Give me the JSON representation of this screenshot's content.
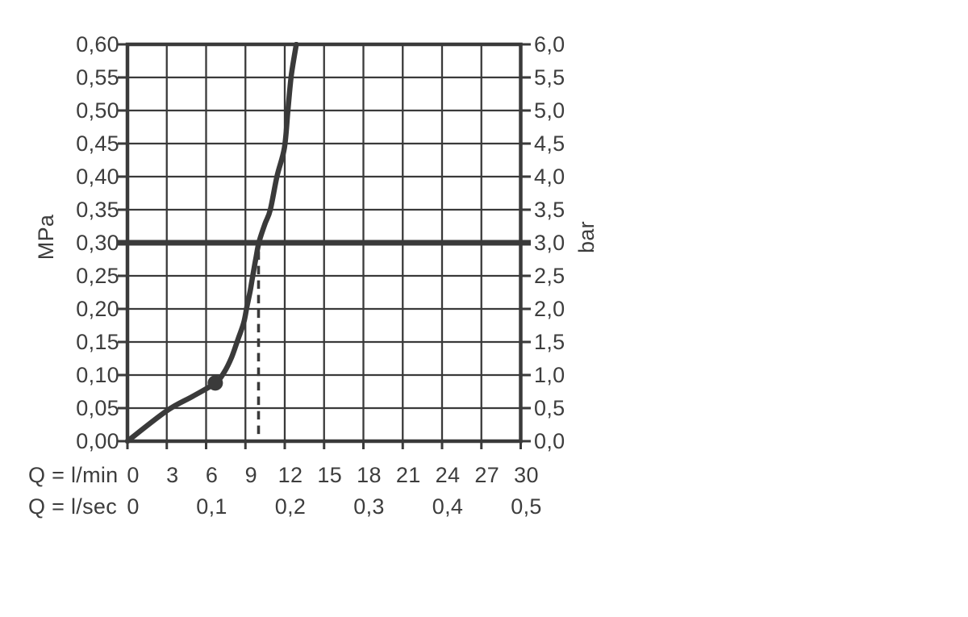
{
  "chart_data": {
    "type": "line",
    "grid": true,
    "colors": {
      "ink": "#3a3a3a",
      "background": "#ffffff"
    },
    "y_left": {
      "unit": "MPa",
      "min": 0,
      "max": 0.6,
      "step": 0.05,
      "tick_labels": [
        "0,00",
        "0,05",
        "0,10",
        "0,15",
        "0,20",
        "0,25",
        "0,30",
        "0,35",
        "0,40",
        "0,45",
        "0,50",
        "0,55",
        "0,60"
      ]
    },
    "y_right": {
      "unit": "bar",
      "min": 0,
      "max": 6,
      "step": 0.5,
      "tick_labels": [
        "0,0",
        "0,5",
        "1,0",
        "1,5",
        "2,0",
        "2,5",
        "3,0",
        "3,5",
        "4,0",
        "4,5",
        "5,0",
        "5,5",
        "6,0"
      ]
    },
    "x_lmin": {
      "prefix": "Q = l/min",
      "min": 0,
      "max": 30,
      "step": 3,
      "tick_labels": [
        "0",
        "3",
        "6",
        "9",
        "12",
        "15",
        "18",
        "21",
        "24",
        "27",
        "30"
      ]
    },
    "x_lsec": {
      "prefix": "Q = l/sec",
      "at_lmin": [
        0,
        6,
        12,
        18,
        24,
        30
      ],
      "tick_labels": [
        "0",
        "0,1",
        "0,2",
        "0,3",
        "0,4",
        "0,5"
      ]
    },
    "series": [
      {
        "name": "flow-curve",
        "points_lmin_mpa": [
          [
            0,
            0.0
          ],
          [
            3,
            0.046
          ],
          [
            5,
            0.068
          ],
          [
            6.7,
            0.088
          ],
          [
            7.4,
            0.105
          ],
          [
            7.95,
            0.127
          ],
          [
            8.45,
            0.155
          ],
          [
            8.87,
            0.179
          ],
          [
            9.12,
            0.204
          ],
          [
            9.37,
            0.228
          ],
          [
            9.55,
            0.249
          ],
          [
            9.8,
            0.277
          ],
          [
            10.05,
            0.302
          ],
          [
            10.5,
            0.329
          ],
          [
            10.9,
            0.35
          ],
          [
            11.4,
            0.4
          ],
          [
            11.97,
            0.443
          ],
          [
            12.24,
            0.5
          ],
          [
            12.5,
            0.553
          ],
          [
            12.88,
            0.6
          ]
        ]
      }
    ],
    "marker_point": {
      "x_lmin": 6.7,
      "y_mpa": 0.088
    },
    "reference_line": {
      "y_mpa": 0.3,
      "y_bar": 3.0
    },
    "dashed_indicator": {
      "x_lmin": 10,
      "y_top_mpa": 0.287
    }
  }
}
